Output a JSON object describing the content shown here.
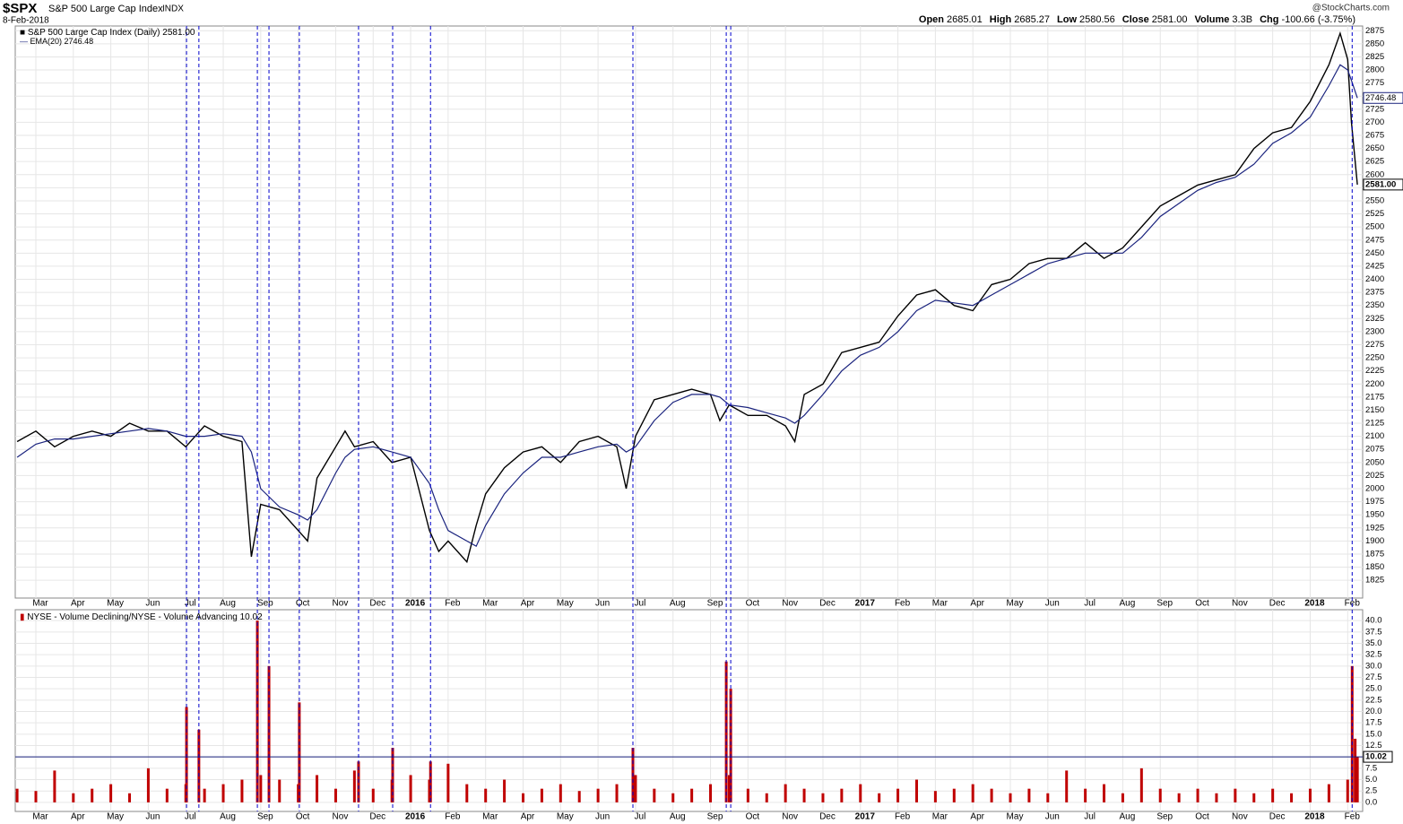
{
  "header": {
    "symbol": "$SPX",
    "name": "S&P 500 Large Cap Index",
    "exchange": "INDX",
    "date": "8-Feb-2018",
    "source": "@StockCharts.com",
    "stats": [
      {
        "label": "Open",
        "value": "2685.01"
      },
      {
        "label": "High",
        "value": "2685.27"
      },
      {
        "label": "Low",
        "value": "2580.56"
      },
      {
        "label": "Close",
        "value": "2581.00"
      },
      {
        "label": "Volume",
        "value": "3.3B"
      },
      {
        "label": "Chg",
        "value": "-100.66 (-3.75%)"
      }
    ]
  },
  "chart_data": [
    {
      "type": "line",
      "x": [
        -0.5,
        0,
        0.5,
        1,
        1.5,
        2,
        2.5,
        3,
        3.5,
        4,
        4.5,
        5,
        5.5,
        5.75,
        6,
        6.5,
        7,
        7.25,
        7.5,
        8,
        8.25,
        8.5,
        9,
        9.5,
        10,
        10.5,
        10.75,
        11,
        11.5,
        11.75,
        12,
        12.5,
        13,
        13.5,
        14,
        14.5,
        15,
        15.5,
        15.75,
        16,
        16.5,
        17,
        17.5,
        18,
        18.25,
        18.5,
        19,
        19.5,
        20,
        20.25,
        20.5,
        21,
        21.5,
        22,
        22.5,
        23,
        23.5,
        24,
        24.5,
        25,
        25.5,
        26,
        26.5,
        27,
        27.5,
        28,
        28.5,
        29,
        29.5,
        30,
        30.5,
        31,
        31.5,
        32,
        32.5,
        33,
        33.5,
        34,
        34.5,
        34.8,
        35,
        35.1,
        35.26
      ],
      "series": [
        {
          "name": "S&P 500 Large Cap Index (Daily)",
          "color": "#000000",
          "values": [
            2090,
            2110,
            2080,
            2100,
            2110,
            2100,
            2125,
            2110,
            2110,
            2080,
            2120,
            2100,
            2090,
            1870,
            1970,
            1960,
            1920,
            1900,
            2020,
            2080,
            2110,
            2080,
            2090,
            2050,
            2060,
            1920,
            1880,
            1900,
            1860,
            1930,
            1990,
            2040,
            2070,
            2080,
            2050,
            2090,
            2100,
            2080,
            2000,
            2100,
            2170,
            2180,
            2190,
            2180,
            2130,
            2160,
            2140,
            2140,
            2120,
            2090,
            2180,
            2200,
            2260,
            2270,
            2280,
            2330,
            2370,
            2380,
            2350,
            2340,
            2390,
            2400,
            2430,
            2440,
            2440,
            2470,
            2440,
            2460,
            2500,
            2540,
            2560,
            2580,
            2590,
            2600,
            2650,
            2680,
            2690,
            2740,
            2810,
            2870,
            2820,
            2700,
            2581
          ]
        },
        {
          "name": "EMA(20)",
          "color": "#1a237e",
          "values": [
            2060,
            2085,
            2095,
            2095,
            2100,
            2105,
            2110,
            2115,
            2110,
            2100,
            2100,
            2105,
            2100,
            2070,
            2000,
            1965,
            1950,
            1940,
            1960,
            2030,
            2060,
            2075,
            2080,
            2070,
            2060,
            2010,
            1960,
            1920,
            1900,
            1890,
            1930,
            1990,
            2030,
            2060,
            2060,
            2070,
            2080,
            2085,
            2070,
            2080,
            2130,
            2165,
            2180,
            2180,
            2175,
            2160,
            2155,
            2145,
            2135,
            2125,
            2140,
            2180,
            2225,
            2255,
            2270,
            2300,
            2340,
            2360,
            2355,
            2350,
            2370,
            2390,
            2410,
            2430,
            2440,
            2450,
            2450,
            2450,
            2480,
            2520,
            2545,
            2570,
            2585,
            2595,
            2620,
            2660,
            2680,
            2710,
            2770,
            2810,
            2800,
            2780,
            2746.48
          ]
        }
      ],
      "markers": [
        4.02,
        4.35,
        5.91,
        6.22,
        7.03,
        8.61,
        9.52,
        10.53,
        15.93,
        18.42,
        18.54,
        35.12
      ],
      "xlim": [
        -0.55,
        35.4
      ],
      "xticks": [
        {
          "value": 0,
          "label": "Mar"
        },
        {
          "value": 1,
          "label": "Apr"
        },
        {
          "value": 2,
          "label": "May"
        },
        {
          "value": 3,
          "label": "Jun"
        },
        {
          "value": 4,
          "label": "Jul"
        },
        {
          "value": 5,
          "label": "Aug"
        },
        {
          "value": 6,
          "label": "Sep"
        },
        {
          "value": 7,
          "label": "Oct"
        },
        {
          "value": 8,
          "label": "Nov"
        },
        {
          "value": 9,
          "label": "Dec"
        },
        {
          "value": 10,
          "label": "2016"
        },
        {
          "value": 11,
          "label": "Feb"
        },
        {
          "value": 12,
          "label": "Mar"
        },
        {
          "value": 13,
          "label": "Apr"
        },
        {
          "value": 14,
          "label": "May"
        },
        {
          "value": 15,
          "label": "Jun"
        },
        {
          "value": 16,
          "label": "Jul"
        },
        {
          "value": 17,
          "label": "Aug"
        },
        {
          "value": 18,
          "label": "Sep"
        },
        {
          "value": 19,
          "label": "Oct"
        },
        {
          "value": 20,
          "label": "Nov"
        },
        {
          "value": 21,
          "label": "Dec"
        },
        {
          "value": 22,
          "label": "2017"
        },
        {
          "value": 23,
          "label": "Feb"
        },
        {
          "value": 24,
          "label": "Mar"
        },
        {
          "value": 25,
          "label": "Apr"
        },
        {
          "value": 26,
          "label": "May"
        },
        {
          "value": 27,
          "label": "Jun"
        },
        {
          "value": 28,
          "label": "Jul"
        },
        {
          "value": 29,
          "label": "Aug"
        },
        {
          "value": 30,
          "label": "Sep"
        },
        {
          "value": 31,
          "label": "Oct"
        },
        {
          "value": 32,
          "label": "Nov"
        },
        {
          "value": 33,
          "label": "Dec"
        },
        {
          "value": 34,
          "label": "2018"
        },
        {
          "value": 35,
          "label": "Feb"
        }
      ],
      "ylim": [
        1791,
        2884
      ],
      "yticks": [
        1825,
        1850,
        1875,
        1900,
        1925,
        1950,
        1975,
        2000,
        2025,
        2050,
        2075,
        2100,
        2125,
        2150,
        2175,
        2200,
        2225,
        2250,
        2275,
        2300,
        2325,
        2350,
        2375,
        2400,
        2425,
        2450,
        2475,
        2500,
        2525,
        2550,
        2575,
        2600,
        2625,
        2650,
        2675,
        2700,
        2725,
        2750,
        2775,
        2800,
        2825,
        2850,
        2875
      ],
      "grid": true
    },
    {
      "type": "bar",
      "x": [
        -0.5,
        0,
        0.5,
        1,
        1.5,
        2,
        2.5,
        3,
        3.5,
        4,
        4.02,
        4.35,
        4.5,
        5,
        5.5,
        5.91,
        6,
        6.22,
        6.5,
        7,
        7.03,
        7.5,
        8,
        8.5,
        8.61,
        9,
        9.5,
        9.52,
        10,
        10.5,
        10.53,
        11,
        11.5,
        12,
        12.5,
        13,
        13.5,
        14,
        14.5,
        15,
        15.5,
        15.93,
        16,
        16.5,
        17,
        17.5,
        18,
        18.42,
        18.5,
        18.54,
        19,
        19.5,
        20,
        20.5,
        21,
        21.5,
        22,
        22.5,
        23,
        23.5,
        24,
        24.5,
        25,
        25.5,
        26,
        26.5,
        27,
        27.5,
        28,
        28.5,
        29,
        29.5,
        30,
        30.5,
        31,
        31.5,
        32,
        32.5,
        33,
        33.5,
        34,
        34.5,
        35,
        35.12,
        35.2,
        35.26
      ],
      "series": [
        {
          "name": "NYSE - Volume Declining/NYSE - Volume Advancing",
          "color": "#c00000",
          "values": [
            3,
            2.5,
            7,
            2,
            3,
            4,
            2,
            7.5,
            3,
            4,
            21,
            16,
            3,
            4,
            5,
            40,
            6,
            30,
            5,
            4,
            22,
            6,
            3,
            7,
            9,
            3,
            5,
            12,
            6,
            5,
            9,
            8.5,
            4,
            3,
            5,
            2,
            3,
            4,
            2.5,
            3,
            4,
            12,
            6,
            3,
            2,
            3,
            4,
            31,
            6,
            25,
            3,
            2,
            4,
            3,
            2,
            3,
            4,
            2,
            3,
            5,
            2.5,
            3,
            4,
            3,
            2,
            3,
            2,
            7,
            3,
            4,
            2,
            7.5,
            3,
            2,
            3,
            2,
            3,
            2,
            3,
            2,
            3,
            4,
            5,
            30,
            14,
            10.02
          ]
        }
      ],
      "reference_line": 10.02,
      "ylim": [
        -2,
        42.4
      ],
      "yticks": [
        {
          "value": 0,
          "label": "0.0"
        },
        {
          "value": 2.5,
          "label": "2.5"
        },
        {
          "value": 5,
          "label": "5.0"
        },
        {
          "value": 7.5,
          "label": "7.5"
        },
        {
          "value": 10,
          "label": "10.0"
        },
        {
          "value": 12.5,
          "label": "12.5"
        },
        {
          "value": 15,
          "label": "15.0"
        },
        {
          "value": 17.5,
          "label": "17.5"
        },
        {
          "value": 20,
          "label": "20.0"
        },
        {
          "value": 22.5,
          "label": "22.5"
        },
        {
          "value": 25,
          "label": "25.0"
        },
        {
          "value": 27.5,
          "label": "27.5"
        },
        {
          "value": 30,
          "label": "30.0"
        },
        {
          "value": 32.5,
          "label": "32.5"
        },
        {
          "value": 35,
          "label": "35.0"
        },
        {
          "value": 37.5,
          "label": "37.5"
        },
        {
          "value": 40,
          "label": "40.0"
        }
      ],
      "grid": true
    }
  ]
}
